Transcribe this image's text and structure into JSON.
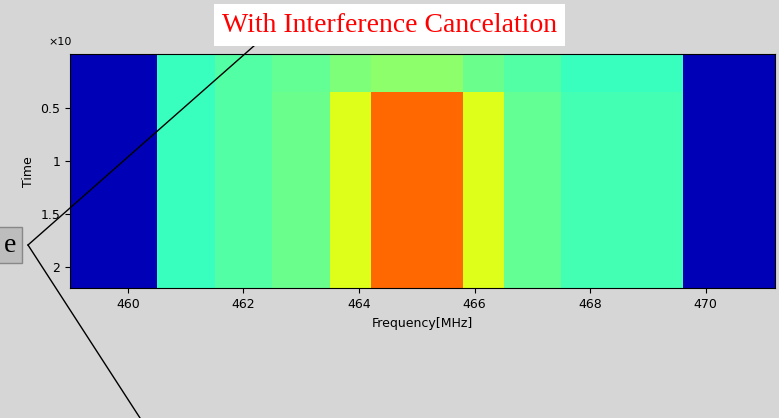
{
  "chart_data": {
    "type": "heatmap",
    "title": "With Interference Cancelation",
    "x_label": "Frequency[MHz]",
    "y_label": "Time",
    "annotations": [
      "×10",
      "e"
    ],
    "x_edges": [
      459,
      460.5,
      461.5,
      462.5,
      463.5,
      464.2,
      465.8,
      466.5,
      467.5,
      469.6,
      471.2
    ],
    "y_edges": [
      0,
      0.35,
      2.2
    ],
    "cells": [
      [
        0.05,
        0.42,
        0.45,
        0.47,
        0.5,
        0.52,
        0.48,
        0.45,
        0.42,
        0.05
      ],
      [
        0.05,
        0.42,
        0.45,
        0.48,
        0.62,
        0.8,
        0.62,
        0.47,
        0.43,
        0.05
      ]
    ],
    "color_range": [
      0,
      1
    ],
    "xlim": [
      459,
      471.2
    ],
    "ylim": [
      2.2,
      0
    ],
    "xticks": [
      460,
      462,
      464,
      466,
      468,
      470
    ],
    "yticks": [
      0.5,
      1,
      1.5,
      2
    ]
  }
}
